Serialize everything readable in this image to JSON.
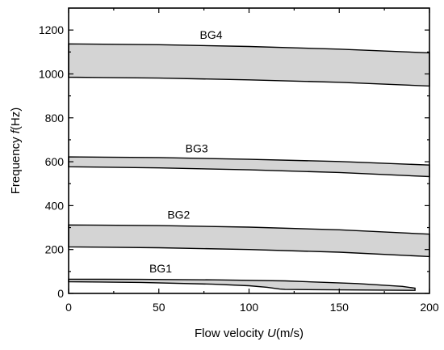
{
  "chart_data": {
    "type": "area",
    "title": "",
    "xlabel": {
      "prefix": "Flow velocity ",
      "symbol": "U",
      "suffix": "(m/s)"
    },
    "ylabel": {
      "prefix": "Frequency  ",
      "symbol": "f",
      "suffix": "(Hz)"
    },
    "xlim": [
      0,
      200
    ],
    "ylim": [
      0,
      1300
    ],
    "xticks": [
      0,
      50,
      100,
      150,
      200
    ],
    "yticks": [
      0,
      200,
      400,
      600,
      800,
      1000,
      1200
    ],
    "grid": false,
    "fill_color": "#d4d4d4",
    "series": [
      {
        "name": "BG1",
        "lower": [
          [
            0,
            53
          ],
          [
            40,
            50
          ],
          [
            80,
            42
          ],
          [
            100,
            35
          ],
          [
            110,
            28
          ],
          [
            117,
            20
          ]
        ],
        "upper": [
          [
            0,
            65
          ],
          [
            40,
            64
          ],
          [
            80,
            62
          ],
          [
            120,
            57
          ],
          [
            160,
            45
          ],
          [
            185,
            32
          ],
          [
            192,
            24
          ]
        ],
        "tip": [
          [
            120,
            18
          ],
          [
            192,
            14
          ]
        ],
        "label_at": [
          51,
          95
        ]
      },
      {
        "name": "BG2",
        "lower": [
          [
            0,
            212
          ],
          [
            50,
            208
          ],
          [
            100,
            200
          ],
          [
            150,
            188
          ],
          [
            200,
            168
          ]
        ],
        "upper": [
          [
            0,
            312
          ],
          [
            50,
            309
          ],
          [
            100,
            302
          ],
          [
            150,
            290
          ],
          [
            200,
            270
          ]
        ],
        "label_at": [
          61,
          340
        ]
      },
      {
        "name": "BG3",
        "lower": [
          [
            0,
            577
          ],
          [
            50,
            572
          ],
          [
            100,
            563
          ],
          [
            150,
            551
          ],
          [
            200,
            532
          ]
        ],
        "upper": [
          [
            0,
            622
          ],
          [
            50,
            619
          ],
          [
            100,
            611
          ],
          [
            150,
            601
          ],
          [
            200,
            585
          ]
        ],
        "label_at": [
          71,
          642
        ]
      },
      {
        "name": "BG4",
        "lower": [
          [
            0,
            985
          ],
          [
            50,
            981
          ],
          [
            100,
            973
          ],
          [
            150,
            962
          ],
          [
            200,
            945
          ]
        ],
        "upper": [
          [
            0,
            1137
          ],
          [
            50,
            1133
          ],
          [
            100,
            1125
          ],
          [
            150,
            1113
          ],
          [
            200,
            1096
          ]
        ],
        "label_at": [
          79,
          1160
        ]
      }
    ]
  }
}
